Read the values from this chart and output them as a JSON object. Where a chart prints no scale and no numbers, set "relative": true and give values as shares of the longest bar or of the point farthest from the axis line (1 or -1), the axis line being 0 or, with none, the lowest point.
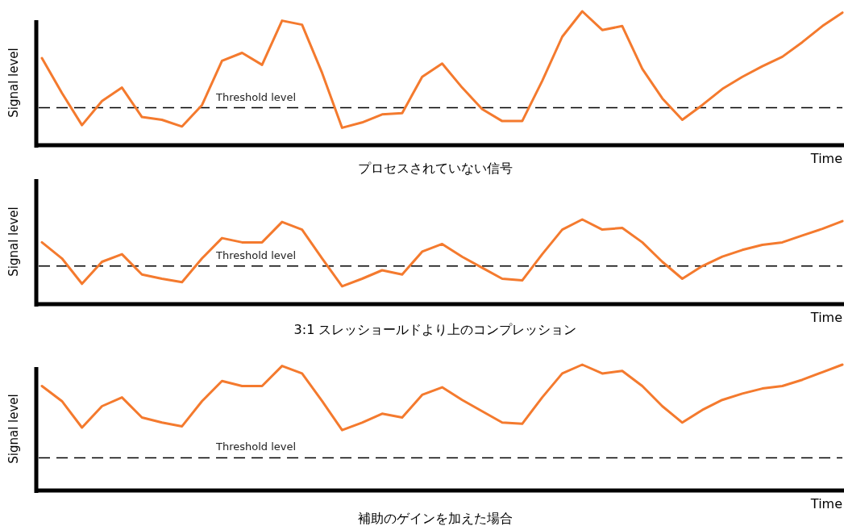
{
  "chart_data": [
    {
      "type": "line",
      "relative": true,
      "ylabel": "Signal level",
      "xlabel": "Time",
      "annotations": [
        "プロセスされていない信号"
      ],
      "categories": [
        null,
        null,
        null,
        null,
        null,
        null,
        null,
        null,
        null,
        null,
        null,
        null,
        null,
        null,
        null,
        null,
        null,
        null,
        null,
        null,
        null,
        null,
        null,
        null,
        null,
        null,
        null,
        null,
        null,
        null,
        null,
        null,
        null,
        null,
        null,
        null,
        null,
        null,
        null,
        null,
        null
      ],
      "series": [
        {
          "color": "#f47a2e",
          "values": [
            0.65,
            0.39,
            0.15,
            0.33,
            0.43,
            0.21,
            0.19,
            0.14,
            0.3,
            0.63,
            0.69,
            0.6,
            0.93,
            0.9,
            0.54,
            0.13,
            0.17,
            0.23,
            0.24,
            0.51,
            0.61,
            0.43,
            0.27,
            0.18,
            0.18,
            0.48,
            0.81,
            1.0,
            0.86,
            0.89,
            0.57,
            0.35,
            0.19,
            0.3,
            0.42,
            0.51,
            0.59,
            0.66,
            0.77,
            0.89,
            0.99
          ]
        }
      ],
      "ref_lines": [
        {
          "axis": "y",
          "value": 0.28,
          "label": "Threshold level",
          "color": "#000000",
          "line_style": "dashed"
        }
      ]
    },
    {
      "type": "line",
      "relative": true,
      "ylabel": "Signal level",
      "xlabel": "Time",
      "annotations": [
        "3:1  スレッショールドより上のコンプレッション"
      ],
      "categories": [
        null,
        null,
        null,
        null,
        null,
        null,
        null,
        null,
        null,
        null,
        null,
        null,
        null,
        null,
        null,
        null,
        null,
        null,
        null,
        null,
        null,
        null,
        null,
        null,
        null,
        null,
        null,
        null,
        null,
        null,
        null,
        null,
        null,
        null,
        null,
        null,
        null,
        null,
        null,
        null,
        null
      ],
      "series": [
        {
          "color": "#f47a2e",
          "values": [
            0.73,
            0.54,
            0.24,
            0.5,
            0.59,
            0.35,
            0.3,
            0.26,
            0.54,
            0.78,
            0.73,
            0.73,
            0.97,
            0.88,
            0.54,
            0.21,
            0.3,
            0.4,
            0.35,
            0.62,
            0.71,
            0.56,
            0.43,
            0.3,
            0.28,
            0.59,
            0.88,
            1.0,
            0.88,
            0.9,
            0.73,
            0.5,
            0.3,
            0.45,
            0.56,
            0.64,
            0.7,
            0.73,
            0.81,
            0.89,
            0.98
          ]
        }
      ],
      "ref_lines": [
        {
          "axis": "y",
          "value": 0.45,
          "label": "Threshold level",
          "color": "#000000",
          "line_style": "dashed"
        }
      ]
    },
    {
      "type": "line",
      "relative": true,
      "ylabel": "Signal level",
      "xlabel": "Time",
      "annotations": [
        "補助のゲインを加えた場合"
      ],
      "categories": [
        null,
        null,
        null,
        null,
        null,
        null,
        null,
        null,
        null,
        null,
        null,
        null,
        null,
        null,
        null,
        null,
        null,
        null,
        null,
        null,
        null,
        null,
        null,
        null,
        null,
        null,
        null,
        null,
        null,
        null,
        null,
        null,
        null,
        null,
        null,
        null,
        null,
        null,
        null,
        null,
        null
      ],
      "series": [
        {
          "color": "#f47a2e",
          "values": [
            0.83,
            0.71,
            0.5,
            0.67,
            0.74,
            0.58,
            0.54,
            0.51,
            0.71,
            0.87,
            0.83,
            0.83,
            0.99,
            0.93,
            0.71,
            0.48,
            0.54,
            0.61,
            0.58,
            0.76,
            0.82,
            0.72,
            0.63,
            0.54,
            0.53,
            0.74,
            0.93,
            1.0,
            0.93,
            0.95,
            0.83,
            0.67,
            0.54,
            0.64,
            0.72,
            0.77,
            0.81,
            0.83,
            0.88,
            0.94,
            1.0
          ]
        }
      ],
      "ref_lines": [
        {
          "axis": "y",
          "value": 0.26,
          "label": "Threshold level",
          "color": "#000000",
          "line_style": "dashed"
        }
      ]
    }
  ]
}
